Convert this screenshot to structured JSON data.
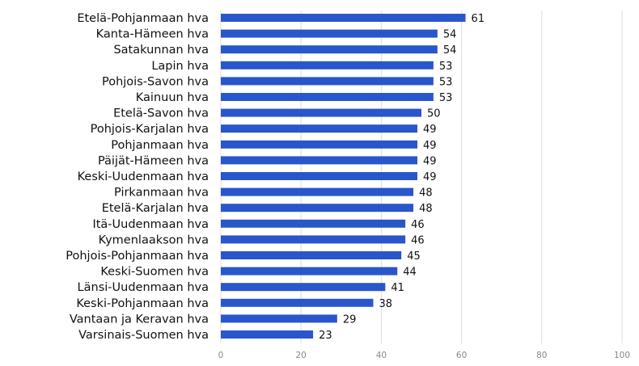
{
  "chart_data": {
    "type": "bar",
    "orientation": "horizontal",
    "title": "",
    "xlabel": "",
    "ylabel": "",
    "xlim": [
      0,
      100
    ],
    "xticks": [
      0,
      20,
      40,
      60,
      80,
      100
    ],
    "grid": true,
    "bar_color": "#2a56cc",
    "categories": [
      "Etelä-Pohjanmaan hva",
      "Kanta-Hämeen hva",
      "Satakunnan hva",
      "Lapin hva",
      "Pohjois-Savon hva",
      "Kainuun hva",
      "Etelä-Savon hva",
      "Pohjois-Karjalan hva",
      "Pohjanmaan hva",
      "Päijät-Hämeen hva",
      "Keski-Uudenmaan hva",
      "Pirkanmaan hva",
      "Etelä-Karjalan hva",
      "Itä-Uudenmaan hva",
      "Kymenlaakson hva",
      "Pohjois-Pohjanmaan hva",
      "Keski-Suomen hva",
      "Länsi-Uudenmaan hva",
      "Keski-Pohjanmaan hva",
      "Vantaan ja Keravan hva",
      "Varsinais-Suomen hva"
    ],
    "values": [
      61,
      54,
      54,
      53,
      53,
      53,
      50,
      49,
      49,
      49,
      49,
      48,
      48,
      46,
      46,
      45,
      44,
      41,
      38,
      29,
      23
    ]
  }
}
